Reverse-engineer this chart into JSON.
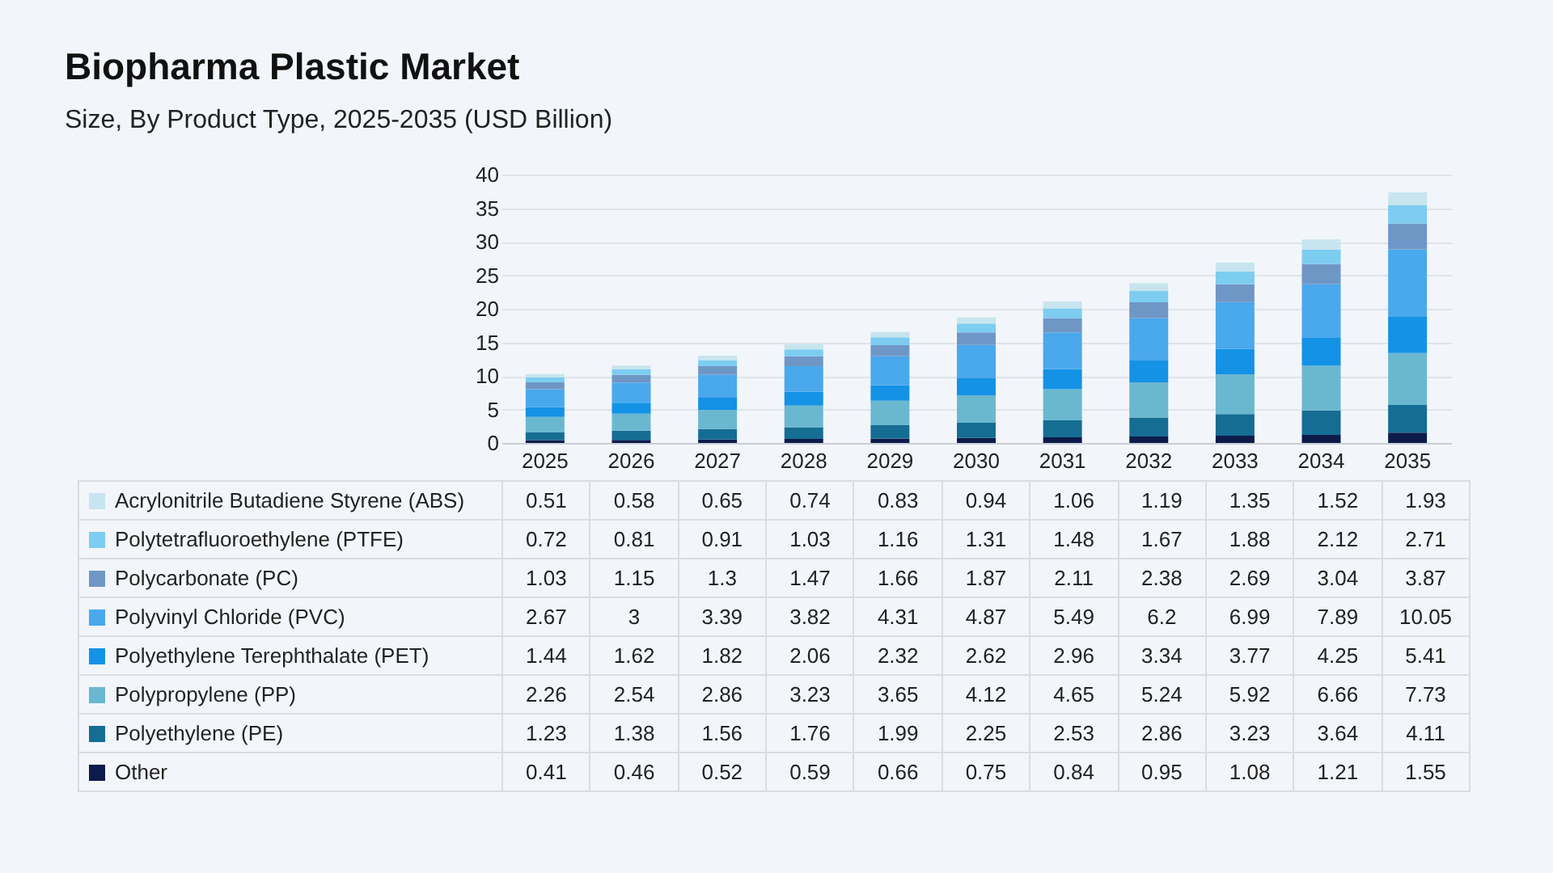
{
  "chart_data": {
    "type": "bar",
    "title": "Biopharma Plastic Market",
    "subtitle": "Size, By Product Type, 2025-2035 (USD Billion)",
    "stacked": true,
    "data_labels": true,
    "legend": "bottom",
    "grid": "y",
    "ylim": [
      0,
      40
    ],
    "yticks": [
      0,
      5,
      10,
      15,
      20,
      25,
      30,
      35,
      40
    ],
    "categories": [
      "2025",
      "2026",
      "2027",
      "2028",
      "2029",
      "2030",
      "2031",
      "2032",
      "2033",
      "2034",
      "2035"
    ],
    "series": [
      {
        "name": "Other",
        "color": "#0d1b4b",
        "values": [
          0.41,
          0.46,
          0.52,
          0.59,
          0.66,
          0.75,
          0.84,
          0.95,
          1.08,
          1.21,
          1.55
        ]
      },
      {
        "name": "Polyethylene (PE)",
        "color": "#156d94",
        "values": [
          1.23,
          1.38,
          1.56,
          1.76,
          1.99,
          2.25,
          2.53,
          2.86,
          3.23,
          3.64,
          4.11
        ]
      },
      {
        "name": "Polypropylene (PP)",
        "color": "#6ab8d0",
        "values": [
          2.26,
          2.54,
          2.86,
          3.23,
          3.65,
          4.12,
          4.65,
          5.24,
          5.92,
          6.66,
          7.73
        ]
      },
      {
        "name": "Polyethylene Terephthalate (PET)",
        "color": "#1492e6",
        "values": [
          1.44,
          1.62,
          1.82,
          2.06,
          2.32,
          2.62,
          2.96,
          3.34,
          3.77,
          4.25,
          5.41
        ]
      },
      {
        "name": "Polyvinyl Chloride (PVC)",
        "color": "#4aa8ec",
        "values": [
          2.67,
          3,
          3.39,
          3.82,
          4.31,
          4.87,
          5.49,
          6.2,
          6.99,
          7.89,
          10.05
        ]
      },
      {
        "name": "Polycarbonate (PC)",
        "color": "#6f97c6",
        "values": [
          1.03,
          1.15,
          1.3,
          1.47,
          1.66,
          1.87,
          2.11,
          2.38,
          2.69,
          3.04,
          3.87
        ]
      },
      {
        "name": "Polytetrafluoroethylene (PTFE)",
        "color": "#7dcdf0",
        "values": [
          0.72,
          0.81,
          0.91,
          1.03,
          1.16,
          1.31,
          1.48,
          1.67,
          1.88,
          2.12,
          2.71
        ]
      },
      {
        "name": "Acrylonitrile Butadiene Styrene (ABS)",
        "color": "#c7e5ee",
        "values": [
          0.51,
          0.58,
          0.65,
          0.74,
          0.83,
          0.94,
          1.06,
          1.19,
          1.35,
          1.52,
          1.93
        ]
      }
    ]
  }
}
